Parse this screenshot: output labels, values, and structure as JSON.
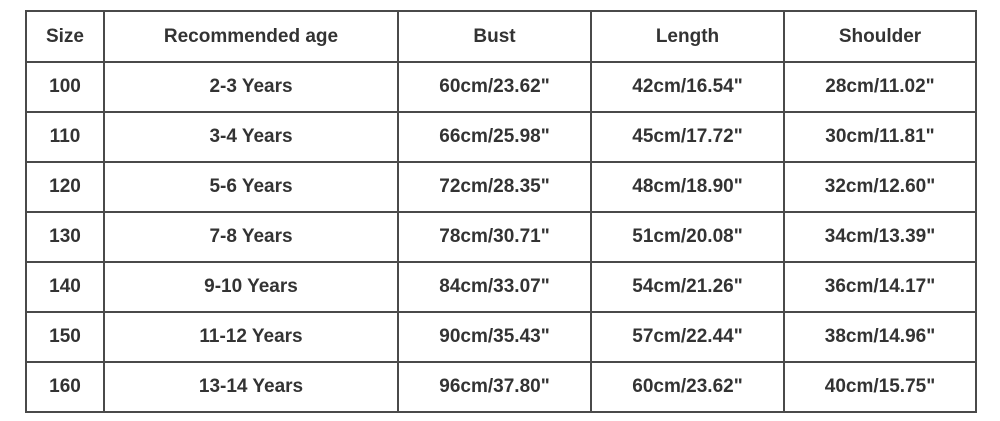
{
  "table": {
    "headers": [
      "Size",
      "Recommended age",
      "Bust",
      "Length",
      "Shoulder"
    ],
    "rows": [
      [
        "100",
        "2-3 Years",
        "60cm/23.62\"",
        "42cm/16.54\"",
        "28cm/11.02\""
      ],
      [
        "110",
        "3-4 Years",
        "66cm/25.98\"",
        "45cm/17.72\"",
        "30cm/11.81\""
      ],
      [
        "120",
        "5-6 Years",
        "72cm/28.35\"",
        "48cm/18.90\"",
        "32cm/12.60\""
      ],
      [
        "130",
        "7-8 Years",
        "78cm/30.71\"",
        "51cm/20.08\"",
        "34cm/13.39\""
      ],
      [
        "140",
        "9-10 Years",
        "84cm/33.07\"",
        "54cm/21.26\"",
        "36cm/14.17\""
      ],
      [
        "150",
        "11-12 Years",
        "90cm/35.43\"",
        "57cm/22.44\"",
        "38cm/14.96\""
      ],
      [
        "160",
        "13-14 Years",
        "96cm/37.80\"",
        "60cm/23.62\"",
        "40cm/15.75\""
      ]
    ]
  }
}
